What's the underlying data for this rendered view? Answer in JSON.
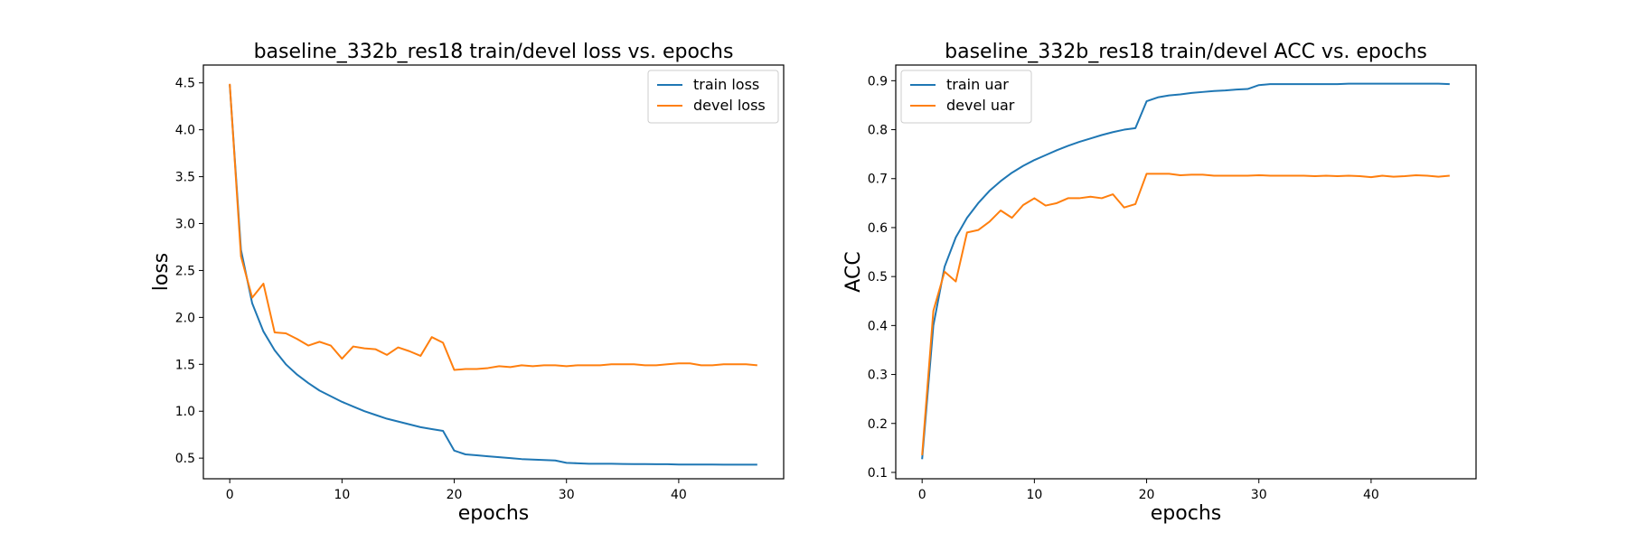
{
  "figure": {
    "background": "#ffffff"
  },
  "chart_data": [
    {
      "type": "line",
      "title": "baseline_332b_res18 train/devel loss vs. epochs",
      "xlabel": "epochs",
      "ylabel": "loss",
      "xlim": [
        -2.35,
        49.35
      ],
      "ylim": [
        0.28,
        4.69
      ],
      "xticks": [
        0,
        10,
        20,
        30,
        40
      ],
      "yticks": [
        0.5,
        1.0,
        1.5,
        2.0,
        2.5,
        3.0,
        3.5,
        4.0,
        4.5
      ],
      "legend": "upper-right",
      "grid": false,
      "x": [
        0,
        1,
        2,
        3,
        4,
        5,
        6,
        7,
        8,
        9,
        10,
        11,
        12,
        13,
        14,
        15,
        16,
        17,
        18,
        19,
        20,
        21,
        22,
        23,
        24,
        25,
        26,
        27,
        28,
        29,
        30,
        31,
        32,
        33,
        34,
        35,
        36,
        37,
        38,
        39,
        40,
        41,
        42,
        43,
        44,
        45,
        46,
        47
      ],
      "series": [
        {
          "name": "train loss",
          "color": "#1f77b4",
          "values": [
            4.48,
            2.72,
            2.15,
            1.85,
            1.65,
            1.5,
            1.39,
            1.3,
            1.22,
            1.16,
            1.1,
            1.05,
            1.0,
            0.96,
            0.92,
            0.89,
            0.86,
            0.83,
            0.81,
            0.79,
            0.58,
            0.54,
            0.53,
            0.52,
            0.51,
            0.5,
            0.49,
            0.485,
            0.48,
            0.475,
            0.45,
            0.445,
            0.44,
            0.44,
            0.44,
            0.438,
            0.437,
            0.436,
            0.435,
            0.435,
            0.432,
            0.432,
            0.432,
            0.432,
            0.431,
            0.431,
            0.431,
            0.431
          ]
        },
        {
          "name": "devel loss",
          "color": "#ff7f0e",
          "values": [
            4.49,
            2.65,
            2.21,
            2.36,
            1.84,
            1.83,
            1.77,
            1.7,
            1.74,
            1.7,
            1.56,
            1.69,
            1.67,
            1.66,
            1.6,
            1.68,
            1.64,
            1.59,
            1.79,
            1.73,
            1.44,
            1.45,
            1.45,
            1.46,
            1.48,
            1.47,
            1.49,
            1.48,
            1.49,
            1.49,
            1.48,
            1.49,
            1.49,
            1.49,
            1.5,
            1.5,
            1.5,
            1.49,
            1.49,
            1.5,
            1.51,
            1.51,
            1.49,
            1.49,
            1.5,
            1.5,
            1.5,
            1.49
          ]
        }
      ]
    },
    {
      "type": "line",
      "title": "baseline_332b_res18 train/devel ACC vs. epochs",
      "xlabel": "epochs",
      "ylabel": "ACC",
      "xlim": [
        -2.35,
        49.35
      ],
      "ylim": [
        0.087,
        0.932
      ],
      "xticks": [
        0,
        10,
        20,
        30,
        40
      ],
      "yticks": [
        0.1,
        0.2,
        0.3,
        0.4,
        0.5,
        0.6,
        0.7,
        0.8,
        0.9
      ],
      "legend": "upper-left",
      "grid": false,
      "x": [
        0,
        1,
        2,
        3,
        4,
        5,
        6,
        7,
        8,
        9,
        10,
        11,
        12,
        13,
        14,
        15,
        16,
        17,
        18,
        19,
        20,
        21,
        22,
        23,
        24,
        25,
        26,
        27,
        28,
        29,
        30,
        31,
        32,
        33,
        34,
        35,
        36,
        37,
        38,
        39,
        40,
        41,
        42,
        43,
        44,
        45,
        46,
        47
      ],
      "series": [
        {
          "name": "train uar",
          "color": "#1f77b4",
          "values": [
            0.127,
            0.4,
            0.52,
            0.58,
            0.62,
            0.65,
            0.675,
            0.695,
            0.712,
            0.726,
            0.738,
            0.748,
            0.758,
            0.767,
            0.775,
            0.782,
            0.789,
            0.795,
            0.8,
            0.803,
            0.858,
            0.866,
            0.87,
            0.872,
            0.875,
            0.877,
            0.879,
            0.88,
            0.882,
            0.883,
            0.891,
            0.893,
            0.893,
            0.893,
            0.893,
            0.893,
            0.893,
            0.893,
            0.894,
            0.894,
            0.894,
            0.894,
            0.894,
            0.894,
            0.894,
            0.894,
            0.894,
            0.893
          ]
        },
        {
          "name": "devel uar",
          "color": "#ff7f0e",
          "values": [
            0.135,
            0.43,
            0.51,
            0.49,
            0.59,
            0.595,
            0.612,
            0.635,
            0.62,
            0.646,
            0.66,
            0.645,
            0.65,
            0.66,
            0.66,
            0.663,
            0.66,
            0.668,
            0.641,
            0.648,
            0.71,
            0.71,
            0.71,
            0.707,
            0.708,
            0.708,
            0.706,
            0.706,
            0.706,
            0.706,
            0.707,
            0.706,
            0.706,
            0.706,
            0.706,
            0.705,
            0.706,
            0.705,
            0.706,
            0.705,
            0.703,
            0.706,
            0.704,
            0.705,
            0.707,
            0.706,
            0.704,
            0.706
          ]
        }
      ]
    }
  ]
}
